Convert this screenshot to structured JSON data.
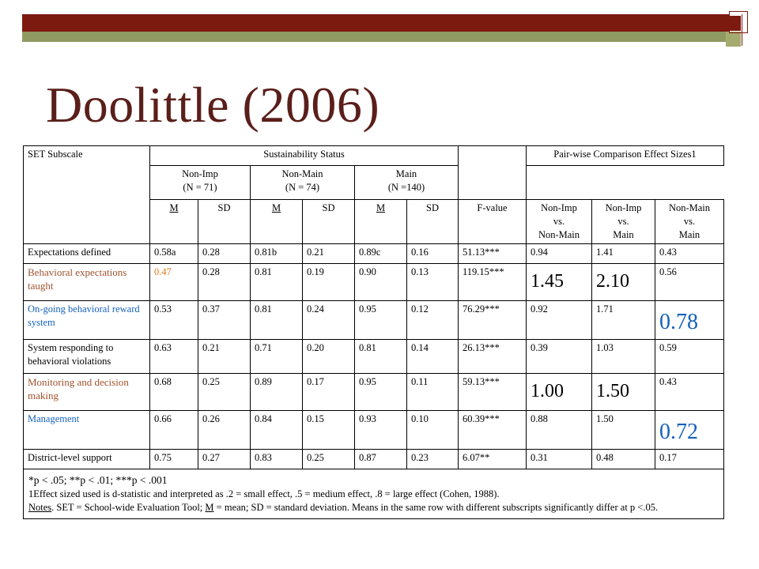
{
  "slide": {
    "title": "Doolittle (2006)",
    "colors": {
      "band": "#7d1a10",
      "stripe": "#8f9a63",
      "title": "#5a1f1a",
      "accent_blue": "#1560bd",
      "accent_brown": "#a0522d"
    }
  },
  "table": {
    "header": {
      "set_subscale": "SET Subscale",
      "sustainability_status": "Sustainability Status",
      "pairwise": "Pair-wise Comparison Effect Sizes1",
      "groups": [
        {
          "name": "Non-Imp",
          "n": "(N = 71)"
        },
        {
          "name": "Non-Main",
          "n": "(N = 74)"
        },
        {
          "name": "Main",
          "n": "(N =140)"
        }
      ],
      "m": "M",
      "sd": "SD",
      "fvalue": "F-value",
      "comparisons": [
        {
          "a": "Non-Imp",
          "vs": "vs.",
          "b": "Non-Main"
        },
        {
          "a": "Non-Imp",
          "vs": "vs.",
          "b": "Main"
        },
        {
          "a": "Non-Main",
          "vs": "vs.",
          "b": "Main"
        }
      ]
    },
    "rows": [
      {
        "label": "Expectations defined",
        "m1": "0.58a",
        "sd1": "0.28",
        "m2": "0.81b",
        "sd2": "0.21",
        "m3": "0.89c",
        "sd3": "0.16",
        "f": "51.13***",
        "e1": "0.94",
        "e2": "1.41",
        "e3": "0.43"
      },
      {
        "label": "Behavioral expectations taught",
        "m1": "0.47",
        "sd1": "0.28",
        "m2": "0.81",
        "sd2": "0.19",
        "m3": "0.90",
        "sd3": "0.13",
        "f": "119.15***",
        "e1": "1.45",
        "e2": "2.10",
        "e3": "0.56"
      },
      {
        "label": "On-going behavioral reward system",
        "m1": "0.53",
        "sd1": "0.37",
        "m2": "0.81",
        "sd2": "0.24",
        "m3": "0.95",
        "sd3": "0.12",
        "f": "76.29***",
        "e1": "0.92",
        "e2": "1.71",
        "e3": "0.78"
      },
      {
        "label": "System responding to behavioral violations",
        "m1": "0.63",
        "sd1": "0.21",
        "m2": "0.71",
        "sd2": "0.20",
        "m3": "0.81",
        "sd3": "0.14",
        "f": "26.13***",
        "e1": "0.39",
        "e2": "1.03",
        "e3": "0.59"
      },
      {
        "label": "Monitoring and decision making",
        "m1": "0.68",
        "sd1": "0.25",
        "m2": "0.89",
        "sd2": "0.17",
        "m3": "0.95",
        "sd3": "0.11",
        "f": "59.13***",
        "e1": "1.00",
        "e2": "1.50",
        "e3": "0.43"
      },
      {
        "label": "Management",
        "m1": "0.66",
        "sd1": "0.26",
        "m2": "0.84",
        "sd2": "0.15",
        "m3": "0.93",
        "sd3": "0.10",
        "f": "60.39***",
        "e1": "0.88",
        "e2": "1.50",
        "e3": "0.72"
      },
      {
        "label": "District-level support",
        "m1": "0.75",
        "sd1": "0.27",
        "m2": "0.83",
        "sd2": "0.25",
        "m3": "0.87",
        "sd3": "0.23",
        "f": "6.07**",
        "e1": "0.31",
        "e2": "0.48",
        "e3": "0.17"
      }
    ],
    "notes": {
      "sig": "*p  < .05; **p < .01; ***p < .001",
      "effect": "1Effect sized used is d-statistic and interpreted as .2 = small effect, .5 = medium effect, .8 = large effect (Cohen, 1988).",
      "notes_label": "Notes",
      "notes_a": ". SET = School-wide Evaluation Tool; ",
      "notes_m": "M",
      "notes_b": " = mean; SD = standard deviation. Means in the same row with different subscripts significantly differ at p <.05."
    }
  }
}
